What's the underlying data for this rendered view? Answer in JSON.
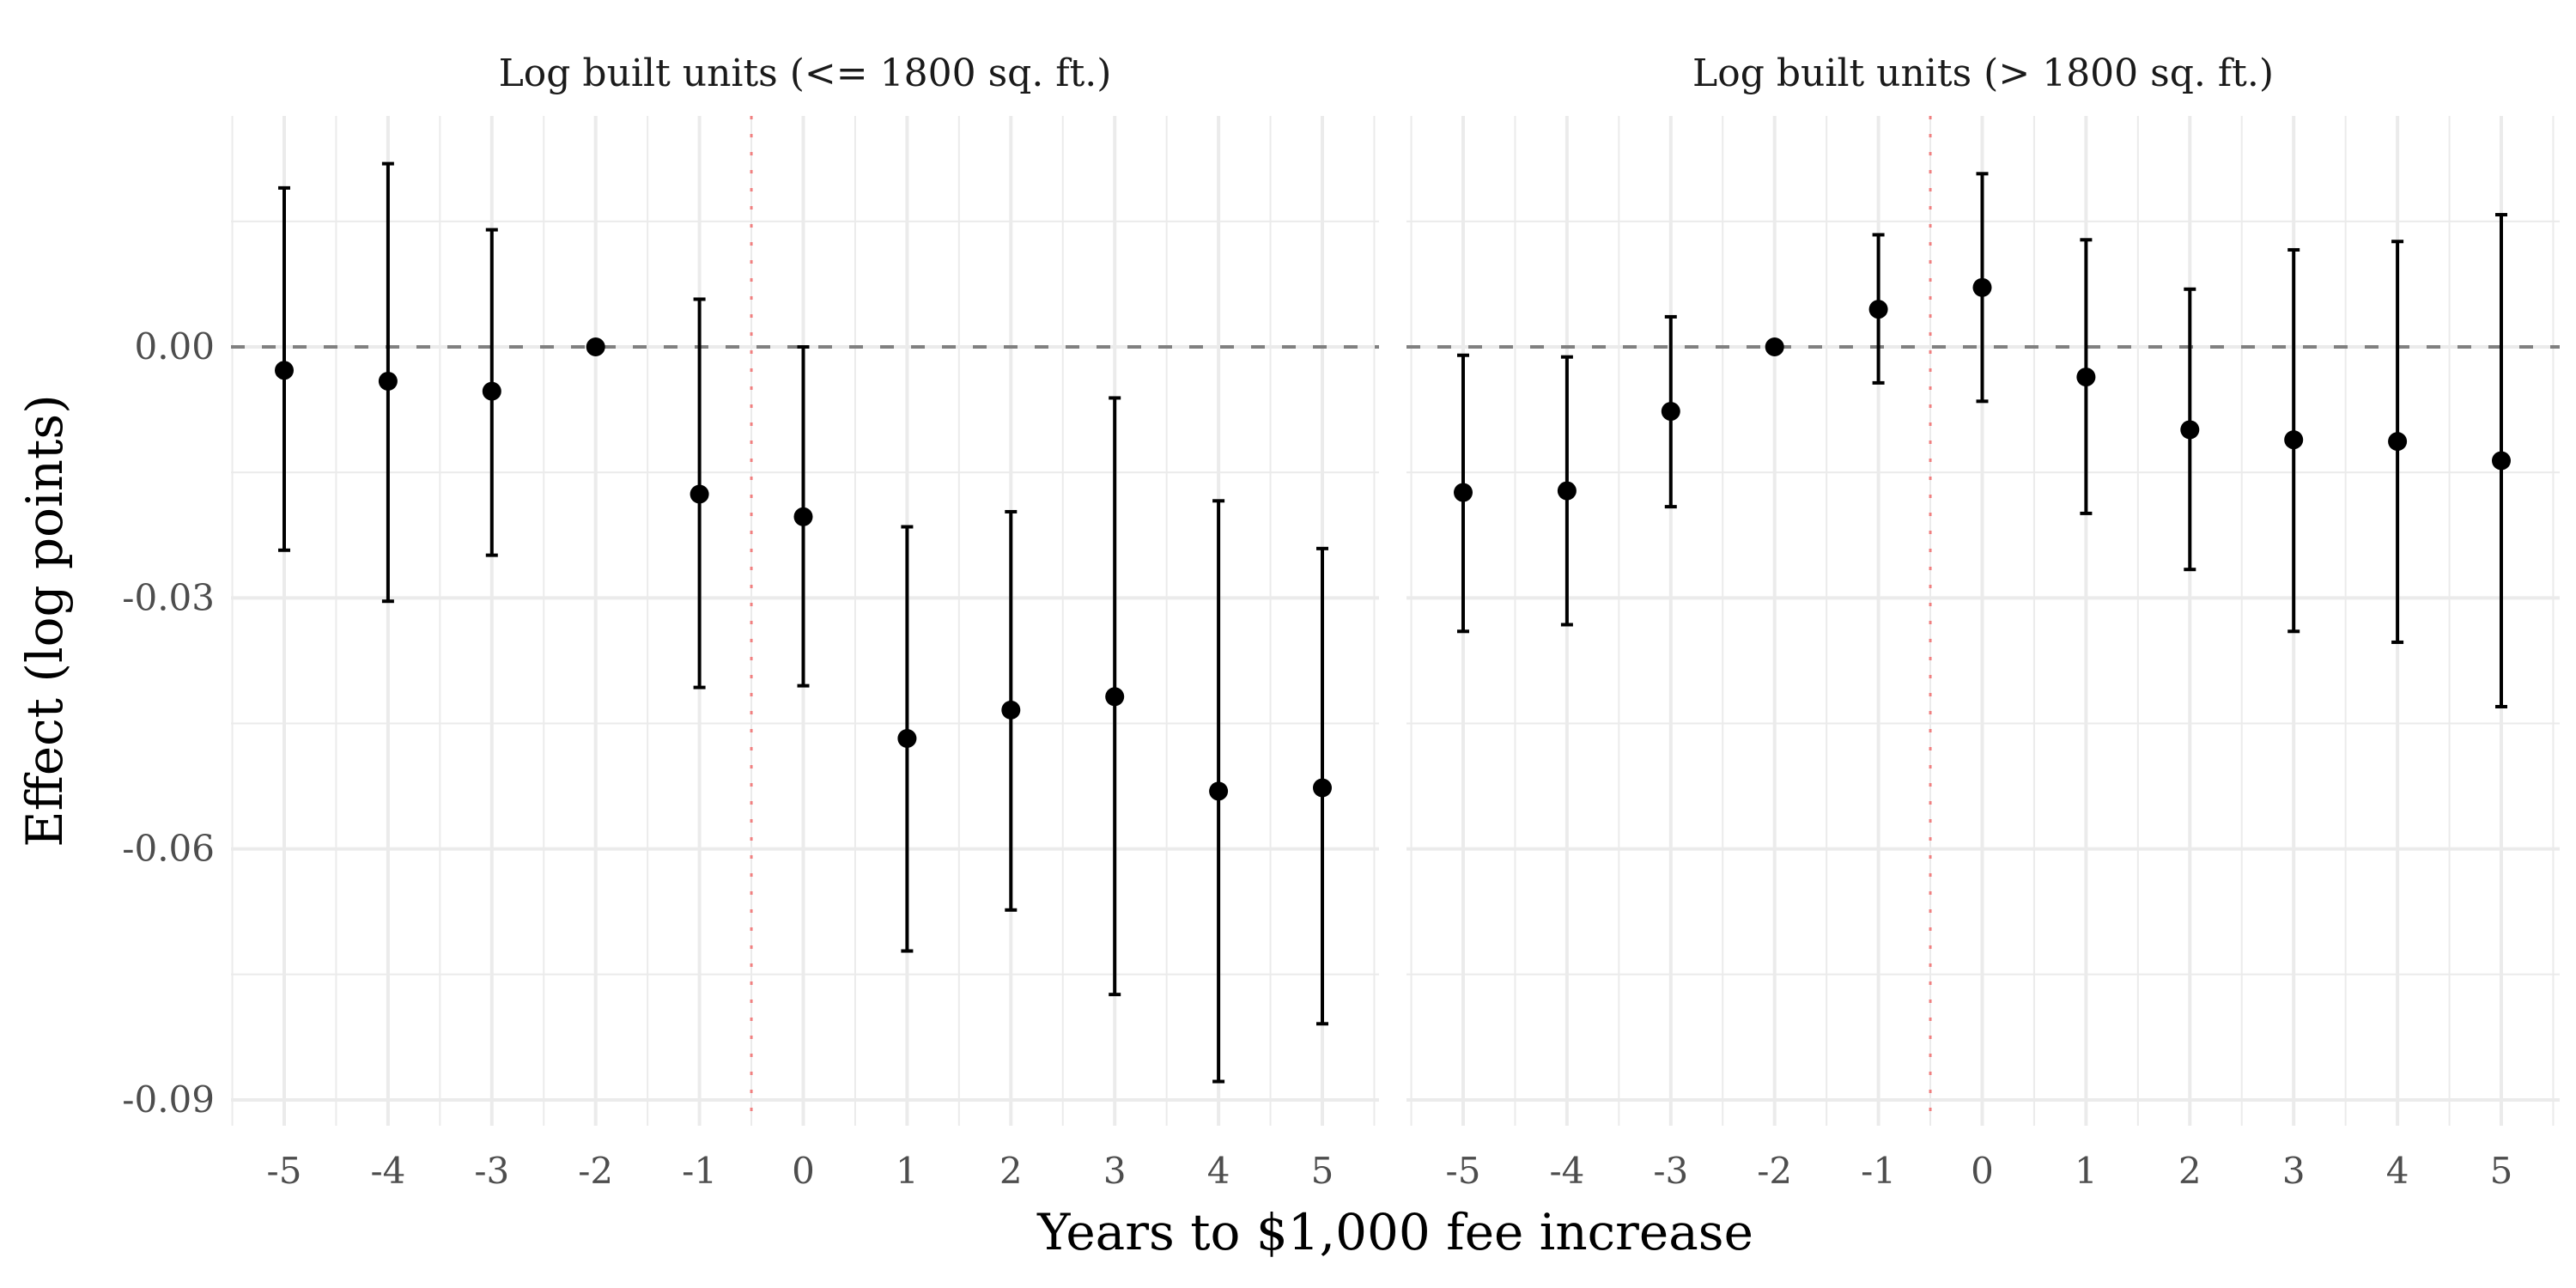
{
  "chart_data": [
    {
      "type": "scatter",
      "title": "Log built units (<= 1800 sq. ft.)",
      "x": [
        -5,
        -4,
        -3,
        -2,
        -1,
        0,
        1,
        2,
        3,
        4,
        5
      ],
      "estimate": [
        -0.0028,
        -0.0041,
        -0.0053,
        0,
        -0.0176,
        -0.0203,
        -0.0468,
        -0.0434,
        -0.0418,
        -0.0531,
        -0.0527
      ],
      "ci_low": [
        -0.0243,
        -0.0304,
        -0.0249,
        0,
        -0.0407,
        -0.0405,
        -0.0722,
        -0.0673,
        -0.0774,
        -0.0878,
        -0.0809
      ],
      "ci_high": [
        0.019,
        0.0219,
        0.014,
        0,
        0.0057,
        0.0,
        -0.0215,
        -0.0197,
        -0.0061,
        -0.0184,
        -0.0241
      ]
    },
    {
      "type": "scatter",
      "title": "Log built units (> 1800 sq. ft.)",
      "x": [
        -5,
        -4,
        -3,
        -2,
        -1,
        0,
        1,
        2,
        3,
        4,
        5
      ],
      "estimate": [
        -0.0174,
        -0.0172,
        -0.0077,
        0,
        0.0045,
        0.0071,
        -0.0036,
        -0.0099,
        -0.0111,
        -0.0113,
        -0.0136
      ],
      "ci_low": [
        -0.034,
        -0.0332,
        -0.0191,
        0,
        -0.0043,
        -0.0065,
        -0.0199,
        -0.0266,
        -0.034,
        -0.0353,
        -0.043
      ],
      "ci_high": [
        -0.001,
        -0.0012,
        0.0036,
        0,
        0.0134,
        0.0207,
        0.0128,
        0.0069,
        0.0116,
        0.0126,
        0.0158
      ]
    }
  ],
  "axes": {
    "xlabel": "Years to $1,000 fee increase",
    "ylabel": "Effect (log points)",
    "x_ticks": [
      "-5",
      "-4",
      "-3",
      "-2",
      "-1",
      "0",
      "1",
      "2",
      "3",
      "4",
      "5"
    ],
    "y_ticks": [
      "0.00",
      "-0.03",
      "-0.06",
      "-0.09"
    ],
    "y_tick_values": [
      0,
      -0.03,
      -0.06,
      -0.09
    ],
    "xlim": [
      -5.5,
      5.5
    ],
    "ylim": [
      -0.0925,
      0.0265
    ],
    "zero_line": {
      "value": 0,
      "style": "dashed",
      "color": "#808080"
    },
    "treatment_line": {
      "value": -0.5,
      "style": "dotted",
      "color": "#f08080"
    },
    "grid": true
  }
}
